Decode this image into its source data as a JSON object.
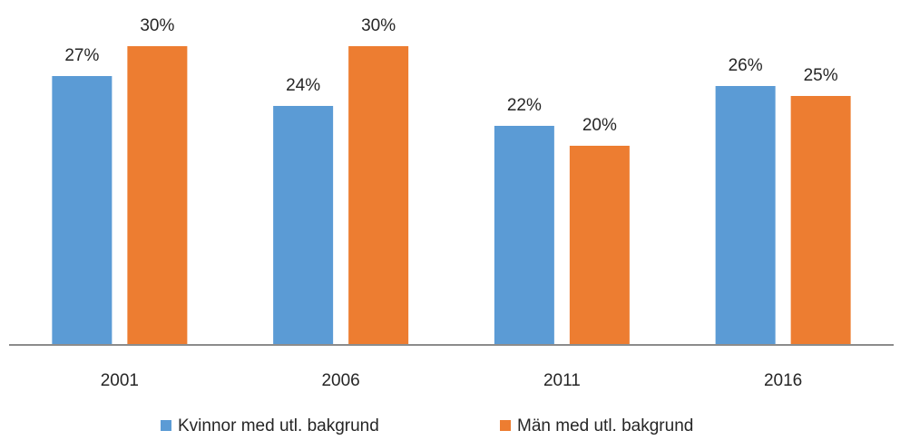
{
  "chart_data": {
    "type": "bar",
    "categories": [
      "2001",
      "2006",
      "2011",
      "2016"
    ],
    "series": [
      {
        "name": "Kvinnor med utl. bakgrund",
        "color": "#5b9bd5",
        "values": [
          27,
          24,
          22,
          26
        ],
        "value_labels": [
          "27%",
          "24%",
          "22%",
          "26%"
        ]
      },
      {
        "name": "Män med utl. bakgrund",
        "color": "#ed7d31",
        "values": [
          30,
          30,
          20,
          25
        ],
        "value_labels": [
          "30%",
          "30%",
          "20%",
          "25%"
        ]
      }
    ],
    "ylim": [
      0,
      30
    ],
    "legend": "bottom"
  }
}
